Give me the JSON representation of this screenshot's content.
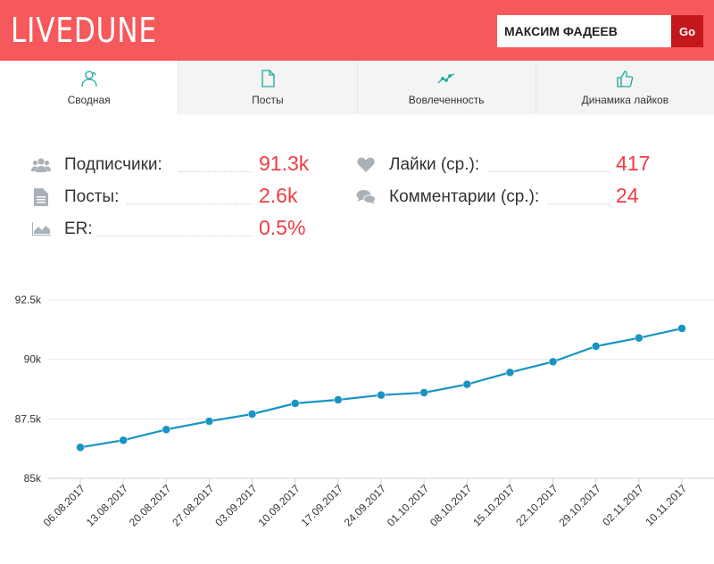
{
  "header": {
    "logo": "LIVEDUNE",
    "search_value": "МАКСИМ ФАДЕЕВ",
    "go_label": "Go",
    "brand_color": "#f5595b",
    "go_color": "#c4171c"
  },
  "tabs": [
    {
      "label": "Сводная",
      "icon": "users-icon",
      "active": true
    },
    {
      "label": "Посты",
      "icon": "document-icon",
      "active": false
    },
    {
      "label": "Вовлеченность",
      "icon": "trend-icon",
      "active": false
    },
    {
      "label": "Динамика лайков",
      "icon": "thumbs-up-icon",
      "active": false
    }
  ],
  "stats": {
    "subscribers": {
      "label": "Подписчики:",
      "value": "91.3k",
      "icon": "users-icon"
    },
    "posts": {
      "label": "Посты:",
      "value": "2.6k",
      "icon": "document-icon"
    },
    "er": {
      "label": "ER:",
      "value": "0.5%",
      "icon": "area-chart-icon"
    },
    "likes": {
      "label": "Лайки (ср.):",
      "value": "417",
      "icon": "heart-icon"
    },
    "comments": {
      "label": "Комментарии (ср.):",
      "value": "24",
      "icon": "comments-icon"
    }
  },
  "chart_data": {
    "type": "line",
    "x": [
      "06.08.2017",
      "13.08.2017",
      "20.08.2017",
      "27.08.2017",
      "03.09.2017",
      "10.09.2017",
      "17.09.2017",
      "24.09.2017",
      "01.10.2017",
      "08.10.2017",
      "15.10.2017",
      "22.10.2017",
      "29.10.2017",
      "02.11.2017",
      "10.11.2017"
    ],
    "values": [
      86.3,
      86.6,
      87.05,
      87.4,
      87.7,
      88.15,
      88.3,
      88.5,
      88.6,
      88.95,
      89.45,
      89.9,
      90.55,
      90.9,
      91.3
    ],
    "ylim": [
      85,
      92.5
    ],
    "yticks": [
      "85k",
      "87.5k",
      "90k",
      "92.5k"
    ],
    "ytick_values": [
      85,
      87.5,
      90,
      92.5
    ],
    "grid": true,
    "line_color": "#1894c2"
  }
}
